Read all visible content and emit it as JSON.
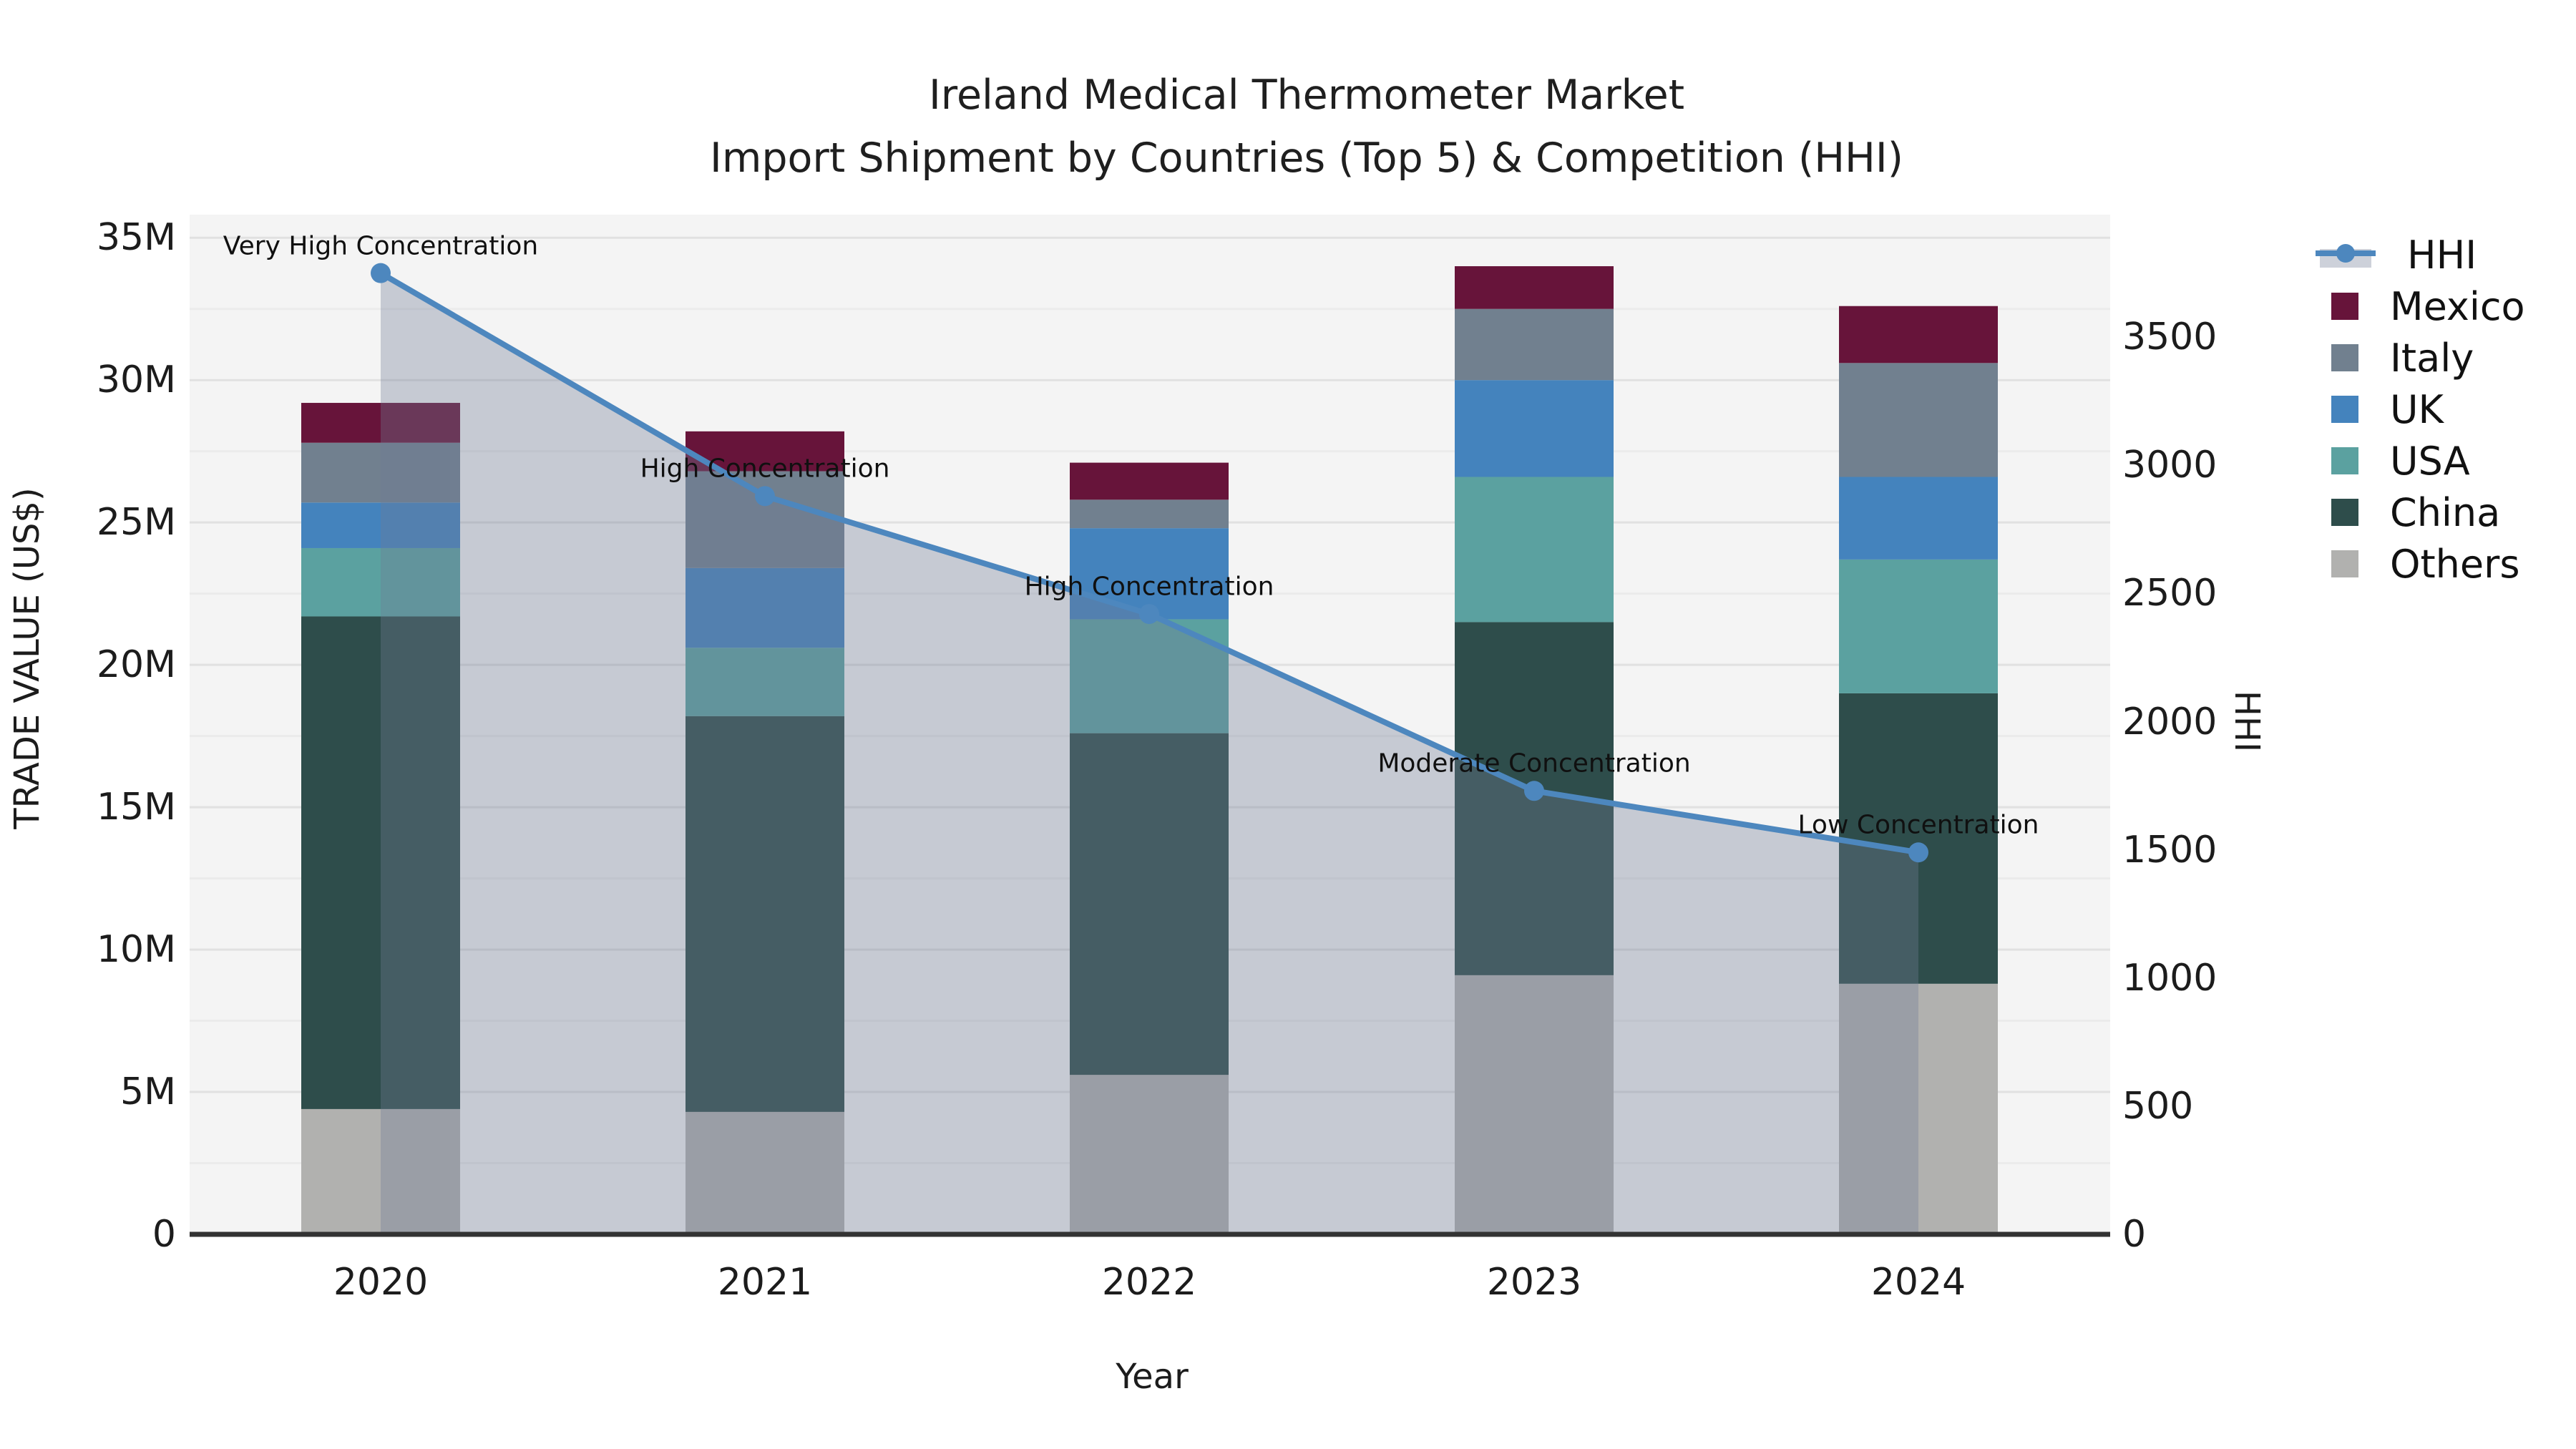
{
  "title": "Ireland Medical Thermometer Market",
  "subtitle": "Import Shipment by Countries (Top 5) & Competition (HHI)",
  "axes": {
    "x": {
      "title": "Year",
      "categories": [
        "2020",
        "2021",
        "2022",
        "2023",
        "2024"
      ]
    },
    "y_left": {
      "title": "TRADE VALUE (US$)",
      "tick_labels": [
        "0",
        "5M",
        "10M",
        "15M",
        "20M",
        "25M",
        "30M",
        "35M"
      ],
      "tick_values": [
        0,
        5,
        10,
        15,
        20,
        25,
        30,
        35
      ]
    },
    "y_right": {
      "title": "HHI",
      "tick_labels": [
        "0",
        "500",
        "1000",
        "1500",
        "2000",
        "2500",
        "3000",
        "3500"
      ],
      "tick_values": [
        0,
        500,
        1000,
        1500,
        2000,
        2500,
        3000,
        3500
      ]
    }
  },
  "legend": {
    "items": [
      {
        "label": "HHI",
        "kind": "line",
        "color": "#4d87be"
      },
      {
        "label": "Mexico",
        "kind": "patch",
        "color": "#67143a"
      },
      {
        "label": "Italy",
        "kind": "patch",
        "color": "#71808f"
      },
      {
        "label": "UK",
        "kind": "patch",
        "color": "#4483bd"
      },
      {
        "label": "USA",
        "kind": "patch",
        "color": "#5ba1a0"
      },
      {
        "label": "China",
        "kind": "patch",
        "color": "#2e4d4b"
      },
      {
        "label": "Others",
        "kind": "patch",
        "color": "#b1b1af"
      }
    ]
  },
  "chart_data": {
    "type": "bar+line",
    "title": "Ireland Medical Thermometer Market",
    "subtitle": "Import Shipment by Countries (Top 5) & Competition (HHI)",
    "categories": [
      "2020",
      "2021",
      "2022",
      "2023",
      "2024"
    ],
    "bar_value_unit": "million US$ (trade value, left axis)",
    "stack_order_bottom_to_top": [
      "Others",
      "China",
      "USA",
      "UK",
      "Italy",
      "Mexico"
    ],
    "series": [
      {
        "name": "Others",
        "color": "#b1b1af",
        "values": [
          4.4,
          4.3,
          5.6,
          9.1,
          8.8
        ]
      },
      {
        "name": "China",
        "color": "#2e4d4b",
        "values": [
          17.3,
          13.9,
          12.0,
          12.4,
          10.2
        ]
      },
      {
        "name": "USA",
        "color": "#5ba1a0",
        "values": [
          2.4,
          2.4,
          4.0,
          5.1,
          4.7
        ]
      },
      {
        "name": "UK",
        "color": "#4483bd",
        "values": [
          1.6,
          2.8,
          3.2,
          3.4,
          2.9
        ]
      },
      {
        "name": "Italy",
        "color": "#71808f",
        "values": [
          2.1,
          3.4,
          1.0,
          2.5,
          4.0
        ]
      },
      {
        "name": "Mexico",
        "color": "#67143a",
        "values": [
          1.4,
          1.4,
          1.3,
          1.5,
          2.0
        ]
      }
    ],
    "bar_totals_millions": [
      29.2,
      28.1,
      27.1,
      34.0,
      32.6
    ],
    "line_series": {
      "name": "HHI",
      "axis": "right",
      "color": "#4d87be",
      "area_fill": "rgba(112,123,148,0.35)",
      "values": [
        3750,
        2880,
        2420,
        1730,
        1490
      ]
    },
    "annotations": [
      {
        "category": "2020",
        "text": "Very High Concentration"
      },
      {
        "category": "2021",
        "text": "High Concentration"
      },
      {
        "category": "2022",
        "text": "High Concentration"
      },
      {
        "category": "2023",
        "text": "Moderate Concentration"
      },
      {
        "category": "2024",
        "text": "Low Concentration"
      }
    ],
    "xlabel": "Year",
    "ylabel_left": "TRADE VALUE (US$)",
    "ylabel_right": "HHI",
    "ylim_left_millions": [
      0,
      35.81
    ],
    "ylim_right": [
      0,
      3978
    ],
    "grid": true,
    "legend_position": "right"
  },
  "colors": {
    "background": "#ffffff",
    "plot_background": "#f4f4f4",
    "grid_major": "#e1e1e1",
    "grid_minor": "#ebebeb",
    "axis_spine": "#333333",
    "text": "#1c1c1c"
  }
}
